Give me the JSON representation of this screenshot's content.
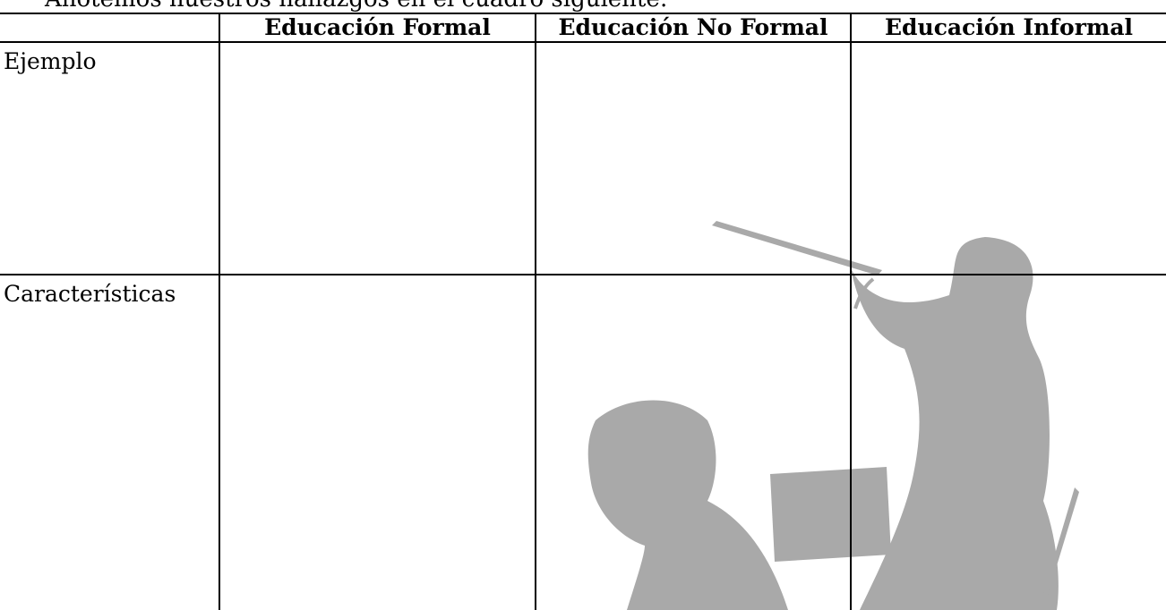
{
  "intro": "Anotemos nuestros hallazgos en el cuadro siguiente:",
  "table": {
    "columns": [
      "Educación Formal",
      "Educación No Formal",
      "Educación Informal"
    ],
    "rows": [
      {
        "label": "Ejemplo"
      },
      {
        "label": "Características"
      }
    ]
  }
}
